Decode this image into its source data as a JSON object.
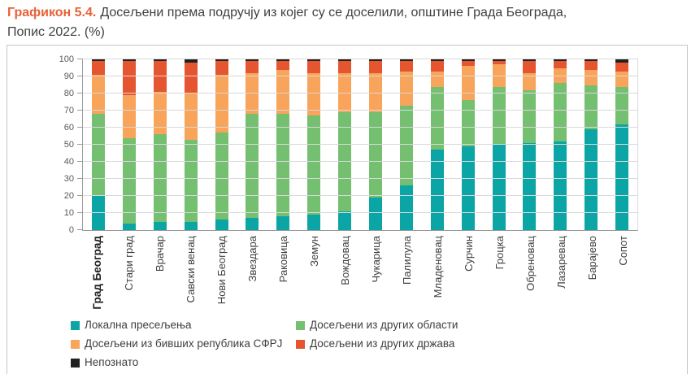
{
  "title": {
    "prefix": "Графикон 5.4.",
    "line1": "Досељени према подручју из којег су се доселили, општине Града Београда,",
    "line2": "Попис 2022. (%)"
  },
  "colors": {
    "accent": "#e8603a",
    "panel_border": "#c6c6c6",
    "grid": "#d9d9d9",
    "axis": "#9b9b9b",
    "tick_label": "#595959",
    "category_label": "#3f3f3f"
  },
  "chart_data": {
    "type": "bar",
    "stacked": true,
    "orientation": "vertical",
    "title": "Графикон 5.4. Досељени према подручју из којег су се доселили, општине Града Београда, Попис 2022. (%)",
    "xlabel": "",
    "ylabel": "",
    "ylim": [
      0,
      100
    ],
    "yticks": [
      0,
      10,
      20,
      30,
      40,
      50,
      60,
      70,
      80,
      90,
      100
    ],
    "grid": true,
    "legend_position": "bottom",
    "bold_category": "Град Београд",
    "categories": [
      "Град Београд",
      "Стари град",
      "Врачар",
      "Савски венац",
      "Нови Београд",
      "Звездара",
      "Раковица",
      "Земун",
      "Вождовац",
      "Чукарица",
      "Палилула",
      "Младеновац",
      "Сурчин",
      "Гроцка",
      "Обреновац",
      "Лазаревац",
      "Барајево",
      "Сопот"
    ],
    "series": [
      {
        "name": "Локална пресељења",
        "color": "#0ba5a5",
        "values": [
          20,
          4,
          5,
          5,
          6,
          7,
          8,
          9,
          11,
          19,
          26,
          47,
          49,
          50,
          51,
          52,
          59,
          62
        ]
      },
      {
        "name": "Досељени из других области",
        "color": "#74bf70",
        "values": [
          48,
          50,
          51,
          48,
          51,
          61,
          60,
          58,
          58,
          50,
          47,
          37,
          27,
          34,
          31,
          34,
          26,
          22
        ]
      },
      {
        "name": "Досељени из бивших република СФРЈ",
        "color": "#f8a45a",
        "values": [
          23,
          25,
          25,
          27,
          34,
          24,
          26,
          25,
          23,
          23,
          20,
          9,
          20,
          13,
          10,
          9,
          9,
          9
        ]
      },
      {
        "name": "Досељени из других држава",
        "color": "#e5552f",
        "values": [
          8,
          20,
          18,
          18,
          8,
          7,
          5,
          7,
          7,
          7,
          6,
          6,
          3,
          2,
          7,
          4,
          5,
          5
        ]
      },
      {
        "name": "Непознато",
        "color": "#212121",
        "values": [
          1,
          1,
          1,
          2,
          1,
          1,
          1,
          1,
          1,
          1,
          1,
          1,
          1,
          1,
          1,
          1,
          1,
          2
        ]
      }
    ]
  }
}
